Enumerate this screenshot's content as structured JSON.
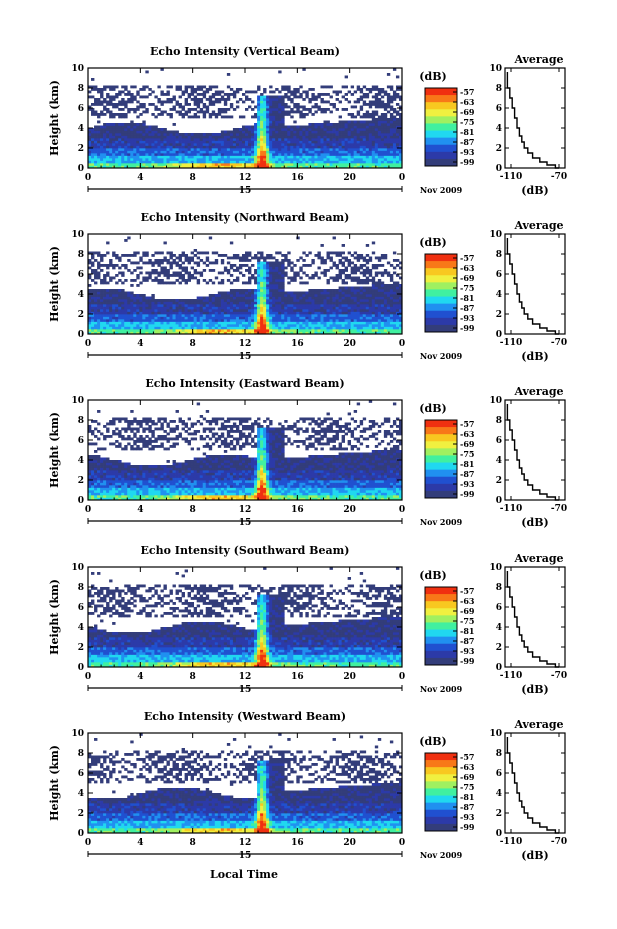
{
  "chart_data": {
    "type": "heatmap",
    "panels": [
      {
        "title": "Echo Intensity (Vertical Beam)"
      },
      {
        "title": "Echo Intensity (Northward Beam)"
      },
      {
        "title": "Echo Intensity (Eastward Beam)"
      },
      {
        "title": "Echo Intensity (Southward Beam)"
      },
      {
        "title": "Echo Intensity (Westward Beam)"
      }
    ],
    "ylabel": "Height (km)",
    "ylim": [
      0,
      10
    ],
    "y_ticks": [
      "0",
      "2",
      "4",
      "6",
      "8",
      "10"
    ],
    "xlim": [
      0,
      24
    ],
    "x_ticks": [
      "0",
      "4",
      "8",
      "12",
      "16",
      "20",
      "0"
    ],
    "date_label": "15",
    "date_suffix": "Nov 2009",
    "xlabel": "Local Time",
    "colorbar": {
      "label": "(dB)",
      "ticks": [
        "-57",
        "-63",
        "-69",
        "-75",
        "-81",
        "-87",
        "-93",
        "-99"
      ],
      "colors": [
        "#f03010",
        "#f87818",
        "#f8c820",
        "#f0f040",
        "#a0f060",
        "#40f0a0",
        "#20d8f0",
        "#2090f0",
        "#2050d0",
        "#2c3aa8",
        "#333d7a"
      ]
    },
    "average": {
      "title": "Average",
      "xlabel": "(dB)",
      "x_ticks": [
        "-110",
        "-70"
      ],
      "xlim": [
        -115,
        -65
      ],
      "y_ticks": [
        "0",
        "2",
        "4",
        "6",
        "8",
        "10"
      ],
      "profile": [
        {
          "height": 0.0,
          "db": -70
        },
        {
          "height": 0.3,
          "db": -73
        },
        {
          "height": 0.6,
          "db": -80
        },
        {
          "height": 1.0,
          "db": -86
        },
        {
          "height": 1.5,
          "db": -92
        },
        {
          "height": 2.0,
          "db": -96
        },
        {
          "height": 2.6,
          "db": -99
        },
        {
          "height": 3.2,
          "db": -101
        },
        {
          "height": 4.0,
          "db": -103
        },
        {
          "height": 5.0,
          "db": -105
        },
        {
          "height": 6.0,
          "db": -107
        },
        {
          "height": 7.0,
          "db": -109
        },
        {
          "height": 8.0,
          "db": -111
        },
        {
          "height": 8.8,
          "db": -113
        },
        {
          "height": 9.6,
          "db": -113
        }
      ]
    }
  }
}
